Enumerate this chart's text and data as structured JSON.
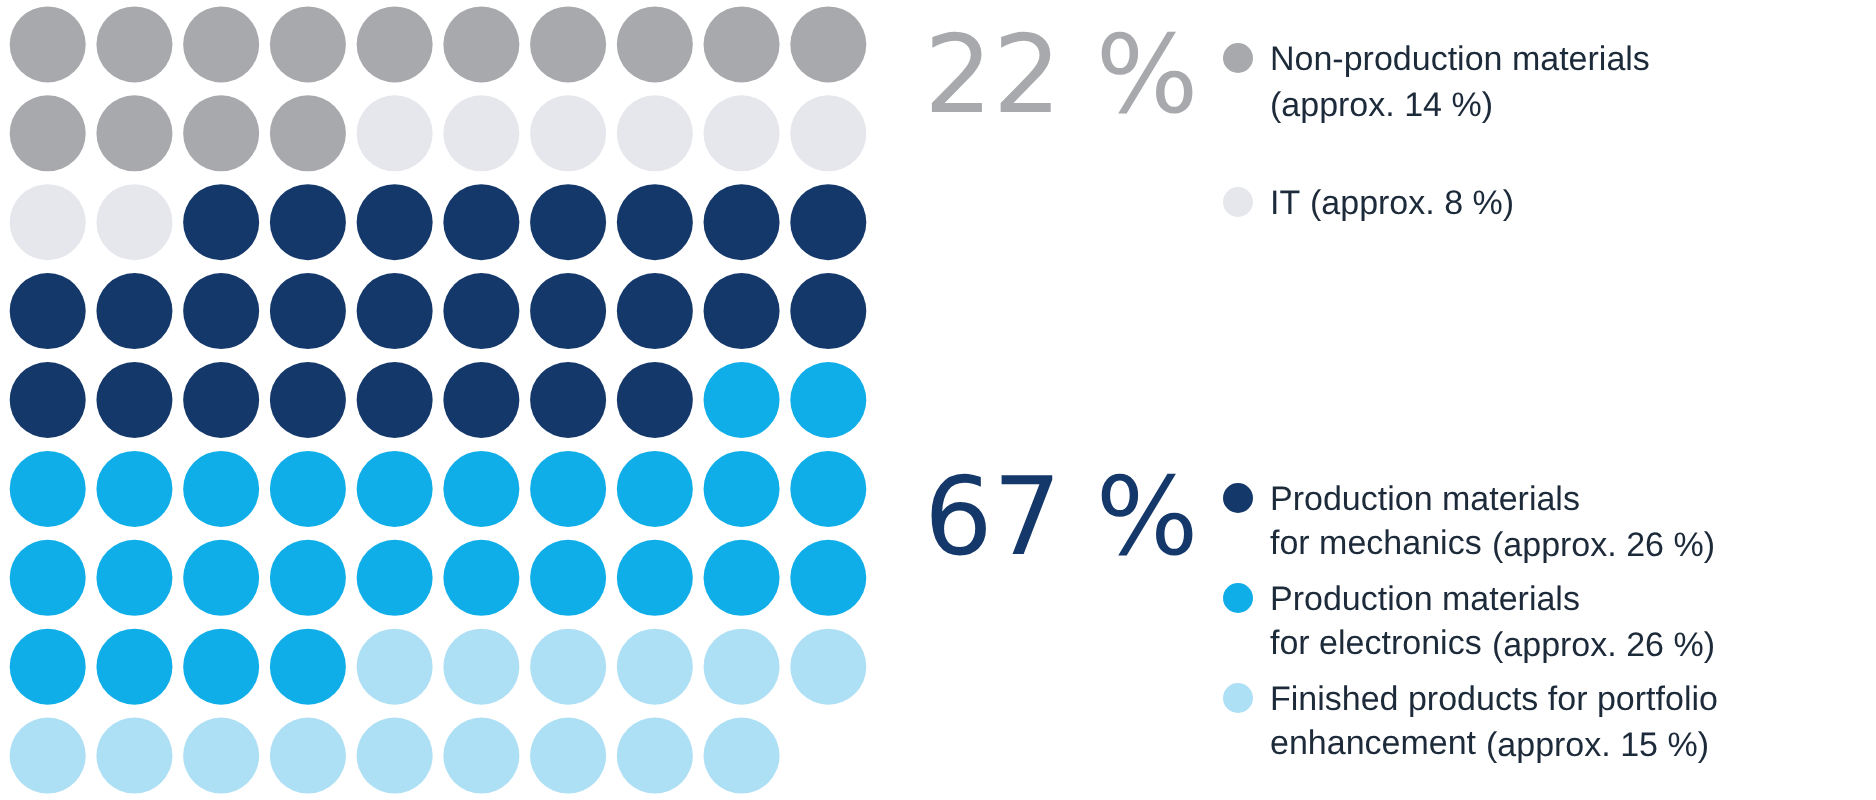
{
  "chart_data": {
    "type": "other",
    "categories": [
      "Non-production materials",
      "IT",
      "Production materials\nfor mechanics",
      "Production materials\nfor electronics",
      "Finished products for portfolio\nenhancement"
    ],
    "values": [
      14,
      8,
      26,
      26,
      15
    ],
    "value_labels": [
      "(approx. 14 %)",
      "(approx. 8 %)",
      "(approx. 26 %)",
      "(approx. 26 %)",
      "(approx. 15 %)"
    ],
    "colors": [
      "#a7a9ac",
      "#e6e7ec",
      "#14386a",
      "#10aee8",
      "#aee0f5"
    ],
    "annotations": [
      "22 %",
      "67 %"
    ]
  }
}
